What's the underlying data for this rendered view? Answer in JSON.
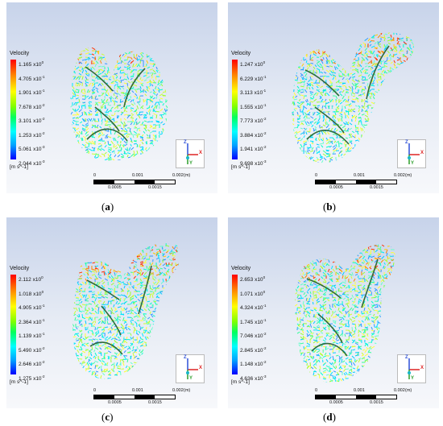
{
  "panels": [
    {
      "id": "a",
      "caption": "a",
      "legend": {
        "title": "Velocity",
        "values": [
          "1.165 x10",
          "4.705 x10",
          "1.901 x10",
          "7.678 x10",
          "3.101 x10",
          "1.253 x10",
          "5.061 x10",
          "2.044 x10"
        ],
        "exponents": [
          "0",
          "-1",
          "-1",
          "-2",
          "-2",
          "-2",
          "-3",
          "-3"
        ],
        "unit": "[m s^-1]"
      },
      "scale": {
        "ticks": [
          "0",
          "0.001",
          "0.002",
          "(m)"
        ],
        "sub_ticks": [
          "0.0005",
          "0.0015"
        ]
      }
    },
    {
      "id": "b",
      "caption": "b",
      "legend": {
        "title": "Velocity",
        "values": [
          "1.247 x10",
          "6.229 x10",
          "3.113 x10",
          "1.555 x10",
          "7.773 x10",
          "3.884 x10",
          "1.941 x10",
          "9.698 x10"
        ],
        "exponents": [
          "0",
          "-1",
          "-1",
          "-1",
          "-2",
          "-2",
          "-2",
          "-3"
        ],
        "unit": "[m s^-1]"
      },
      "scale": {
        "ticks": [
          "0",
          "0.001",
          "0.002",
          "(m)"
        ],
        "sub_ticks": [
          "0.0005",
          "0.0015"
        ]
      }
    },
    {
      "id": "c",
      "caption": "c",
      "legend": {
        "title": "Velocity",
        "values": [
          "2.112 x10",
          "1.018 x10",
          "4.905 x10",
          "2.364 x10",
          "1.139 x10",
          "5.490 x10",
          "2.646 x10",
          "1.275 x10"
        ],
        "exponents": [
          "0",
          "0",
          "-1",
          "-1",
          "-1",
          "-2",
          "-2",
          "-2"
        ],
        "unit": "[m s^-1]"
      },
      "scale": {
        "ticks": [
          "0",
          "0.001",
          "0.002",
          "(m)"
        ],
        "sub_ticks": [
          "0.0005",
          "0.0015"
        ]
      }
    },
    {
      "id": "d",
      "caption": "d",
      "legend": {
        "title": "Velocity",
        "values": [
          "2.653 x10",
          "1.071 x10",
          "4.324 x10",
          "1.745 x10",
          "7.046 x10",
          "2.845 x10",
          "1.148 x10",
          "4.636 x10"
        ],
        "exponents": [
          "0",
          "0",
          "-1",
          "-1",
          "-2",
          "-2",
          "-2",
          "-3"
        ],
        "unit": "[m s^-1]"
      },
      "scale": {
        "ticks": [
          "0",
          "0.001",
          "0.002",
          "(m)"
        ],
        "sub_ticks": [
          "0.0005",
          "0.0015"
        ]
      }
    }
  ],
  "triad_labels": {
    "x": "X",
    "y": "Y",
    "z": "Z"
  },
  "colors": {
    "high": "#ff0000",
    "mid": "#ffff00",
    "low": "#0000ff",
    "stream": "#2f6b3c",
    "streamHead": "#d7372a"
  }
}
